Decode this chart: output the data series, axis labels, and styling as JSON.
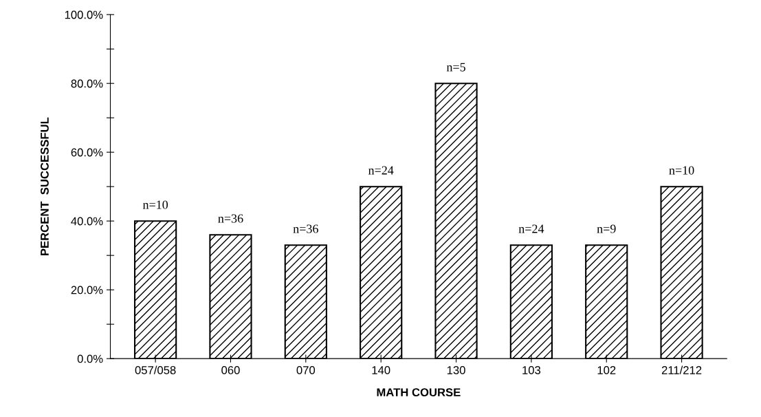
{
  "chart_data": {
    "type": "bar",
    "xlabel": "MATH COURSE",
    "ylabel": "PERCENT  SUCCESSFUL",
    "categories": [
      "057/058",
      "060",
      "070",
      "140",
      "130",
      "103",
      "102",
      "211/212"
    ],
    "values": [
      40,
      36,
      33,
      50,
      80,
      33,
      33,
      50
    ],
    "color": "#000000",
    "ylim": [
      0,
      100
    ],
    "yticks": [
      {
        "value": 0,
        "label": "0.0%"
      },
      {
        "value": 10,
        "label": null
      },
      {
        "value": 20,
        "label": "20.0%"
      },
      {
        "value": 30,
        "label": null
      },
      {
        "value": 40,
        "label": "40.0%"
      },
      {
        "value": 50,
        "label": null
      },
      {
        "value": 60,
        "label": "60.0%"
      },
      {
        "value": 70,
        "label": null
      },
      {
        "value": 80,
        "label": "80.0%"
      },
      {
        "value": 90,
        "label": null
      },
      {
        "value": 100,
        "label": "100.0%"
      }
    ],
    "annotations": [
      {
        "text": "n=10",
        "x": "057/058",
        "y": 40
      },
      {
        "text": "n=36",
        "x": "060",
        "y": 36
      },
      {
        "text": "n=36",
        "x": "070",
        "y": 33
      },
      {
        "text": "n=24",
        "x": "140",
        "y": 50
      },
      {
        "text": "n=5",
        "x": "130",
        "y": 80
      },
      {
        "text": "n=24",
        "x": "103",
        "y": 33
      },
      {
        "text": "n=9",
        "x": "102",
        "y": 33
      },
      {
        "text": "n=10",
        "x": "211/212",
        "y": 50
      }
    ]
  }
}
